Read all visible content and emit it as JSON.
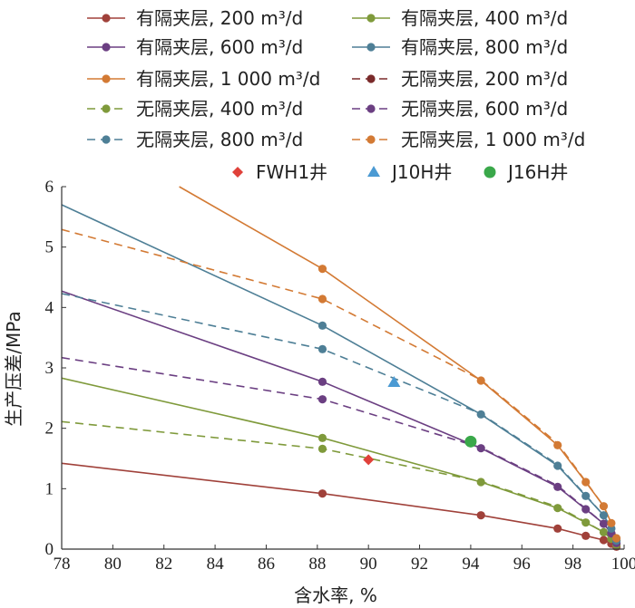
{
  "chart_data": {
    "type": "line",
    "xlabel": "含水率, %",
    "ylabel": "生产压差/MPa",
    "xlim": [
      78,
      100
    ],
    "ylim": [
      0,
      6
    ],
    "xticks": [
      78,
      80,
      82,
      84,
      86,
      88,
      90,
      92,
      94,
      96,
      98,
      100
    ],
    "yticks": [
      0,
      1,
      2,
      3,
      4,
      5,
      6
    ],
    "grid": false,
    "legend_position": "top",
    "series": [
      {
        "name": "有隔夹层, 200 m³/d",
        "color": "#a0413a",
        "dash": false,
        "line_x": [
          78,
          88.2,
          94.4,
          97.4,
          98.5,
          99.2,
          99.5,
          99.7
        ],
        "line_y": [
          1.42,
          0.92,
          0.56,
          0.34,
          0.22,
          0.15,
          0.09,
          0.04
        ],
        "marker_x": [
          88.2,
          94.4,
          97.4,
          98.5,
          99.2,
          99.5,
          99.7
        ],
        "marker_y": [
          0.92,
          0.56,
          0.34,
          0.22,
          0.15,
          0.09,
          0.04
        ]
      },
      {
        "name": "有隔夹层, 400 m³/d",
        "color": "#7f9a3b",
        "dash": false,
        "line_x": [
          78,
          88.2,
          94.4,
          97.4,
          98.5,
          99.2,
          99.5,
          99.7
        ],
        "line_y": [
          2.83,
          1.84,
          1.11,
          0.68,
          0.44,
          0.28,
          0.17,
          0.07
        ],
        "marker_x": [
          88.2,
          94.4,
          97.4,
          98.5,
          99.2,
          99.5,
          99.7
        ],
        "marker_y": [
          1.84,
          1.11,
          0.68,
          0.44,
          0.28,
          0.17,
          0.07
        ]
      },
      {
        "name": "有隔夹层, 600 m³/d",
        "color": "#6b3f82",
        "dash": false,
        "line_x": [
          78,
          88.2,
          94.4,
          97.4,
          98.5,
          99.2,
          99.5,
          99.7
        ],
        "line_y": [
          4.27,
          2.77,
          1.67,
          1.03,
          0.66,
          0.42,
          0.26,
          0.1
        ],
        "marker_x": [
          88.2,
          94.4,
          97.4,
          98.5,
          99.2,
          99.5,
          99.7
        ],
        "marker_y": [
          2.77,
          1.67,
          1.03,
          0.66,
          0.42,
          0.26,
          0.1
        ]
      },
      {
        "name": "有隔夹层, 800 m³/d",
        "color": "#4e7f96",
        "dash": false,
        "line_x": [
          78,
          88.2,
          94.4,
          97.4,
          98.5,
          99.2,
          99.5,
          99.7
        ],
        "line_y": [
          5.7,
          3.7,
          2.23,
          1.38,
          0.88,
          0.56,
          0.34,
          0.14
        ],
        "marker_x": [
          88.2,
          94.4,
          97.4,
          98.5,
          99.2,
          99.5,
          99.7
        ],
        "marker_y": [
          3.7,
          2.23,
          1.38,
          0.88,
          0.56,
          0.34,
          0.14
        ]
      },
      {
        "name": "有隔夹层, 1 000 m³/d",
        "color": "#d37a34",
        "dash": false,
        "line_x": [
          82.6,
          88.2,
          94.4,
          97.4,
          98.5,
          99.2,
          99.5,
          99.7
        ],
        "line_y": [
          6.0,
          4.64,
          2.79,
          1.72,
          1.11,
          0.71,
          0.43,
          0.18
        ],
        "marker_x": [
          88.2,
          94.4,
          97.4,
          98.5,
          99.2,
          99.5,
          99.7
        ],
        "marker_y": [
          4.64,
          2.79,
          1.72,
          1.11,
          0.71,
          0.43,
          0.18
        ]
      },
      {
        "name": "无隔夹层, 200 m³/d",
        "color": "#7a2a2a",
        "dash": true,
        "line_x": [],
        "line_y": [],
        "marker_x": [],
        "marker_y": []
      },
      {
        "name": "无隔夹层, 400 m³/d",
        "color": "#7f9a3b",
        "dash": true,
        "line_x": [
          78,
          88.2,
          94.4,
          97.4,
          98.5,
          99.2,
          99.5,
          99.7
        ],
        "line_y": [
          2.11,
          1.66,
          1.12,
          0.7,
          0.45,
          0.28,
          0.17,
          0.07
        ],
        "marker_x": [
          88.2
        ],
        "marker_y": [
          1.66
        ]
      },
      {
        "name": "无隔夹层, 600 m³/d",
        "color": "#6b3f82",
        "dash": true,
        "line_x": [
          78,
          88.2,
          94.4,
          97.4,
          98.5,
          99.2,
          99.5,
          99.7
        ],
        "line_y": [
          3.17,
          2.48,
          1.68,
          1.05,
          0.67,
          0.42,
          0.26,
          0.1
        ],
        "marker_x": [
          88.2
        ],
        "marker_y": [
          2.48
        ]
      },
      {
        "name": "无隔夹层, 800 m³/d",
        "color": "#4e7f96",
        "dash": true,
        "line_x": [
          78,
          88.2,
          94.4,
          97.4,
          98.5,
          99.2,
          99.5,
          99.7
        ],
        "line_y": [
          4.23,
          3.31,
          2.24,
          1.4,
          0.89,
          0.56,
          0.34,
          0.14
        ],
        "marker_x": [
          88.2
        ],
        "marker_y": [
          3.31
        ]
      },
      {
        "name": "无隔夹层, 1 000 m³/d",
        "color": "#d37a34",
        "dash": true,
        "line_x": [
          78,
          88.2,
          94.4,
          97.4,
          98.5,
          99.2,
          99.5,
          99.7
        ],
        "line_y": [
          5.29,
          4.14,
          2.8,
          1.75,
          1.12,
          0.71,
          0.43,
          0.18
        ],
        "marker_x": [
          88.2
        ],
        "marker_y": [
          4.14
        ]
      }
    ],
    "wells": [
      {
        "name": "FWH1井",
        "x": 90.0,
        "y": 1.48,
        "marker": "diamond",
        "color": "#e0413a"
      },
      {
        "name": "J10H井",
        "x": 91.0,
        "y": 2.76,
        "marker": "triangle",
        "color": "#4b9ad3"
      },
      {
        "name": "J16H井",
        "x": 94.0,
        "y": 1.78,
        "marker": "circle",
        "color": "#3aa84a"
      }
    ]
  }
}
